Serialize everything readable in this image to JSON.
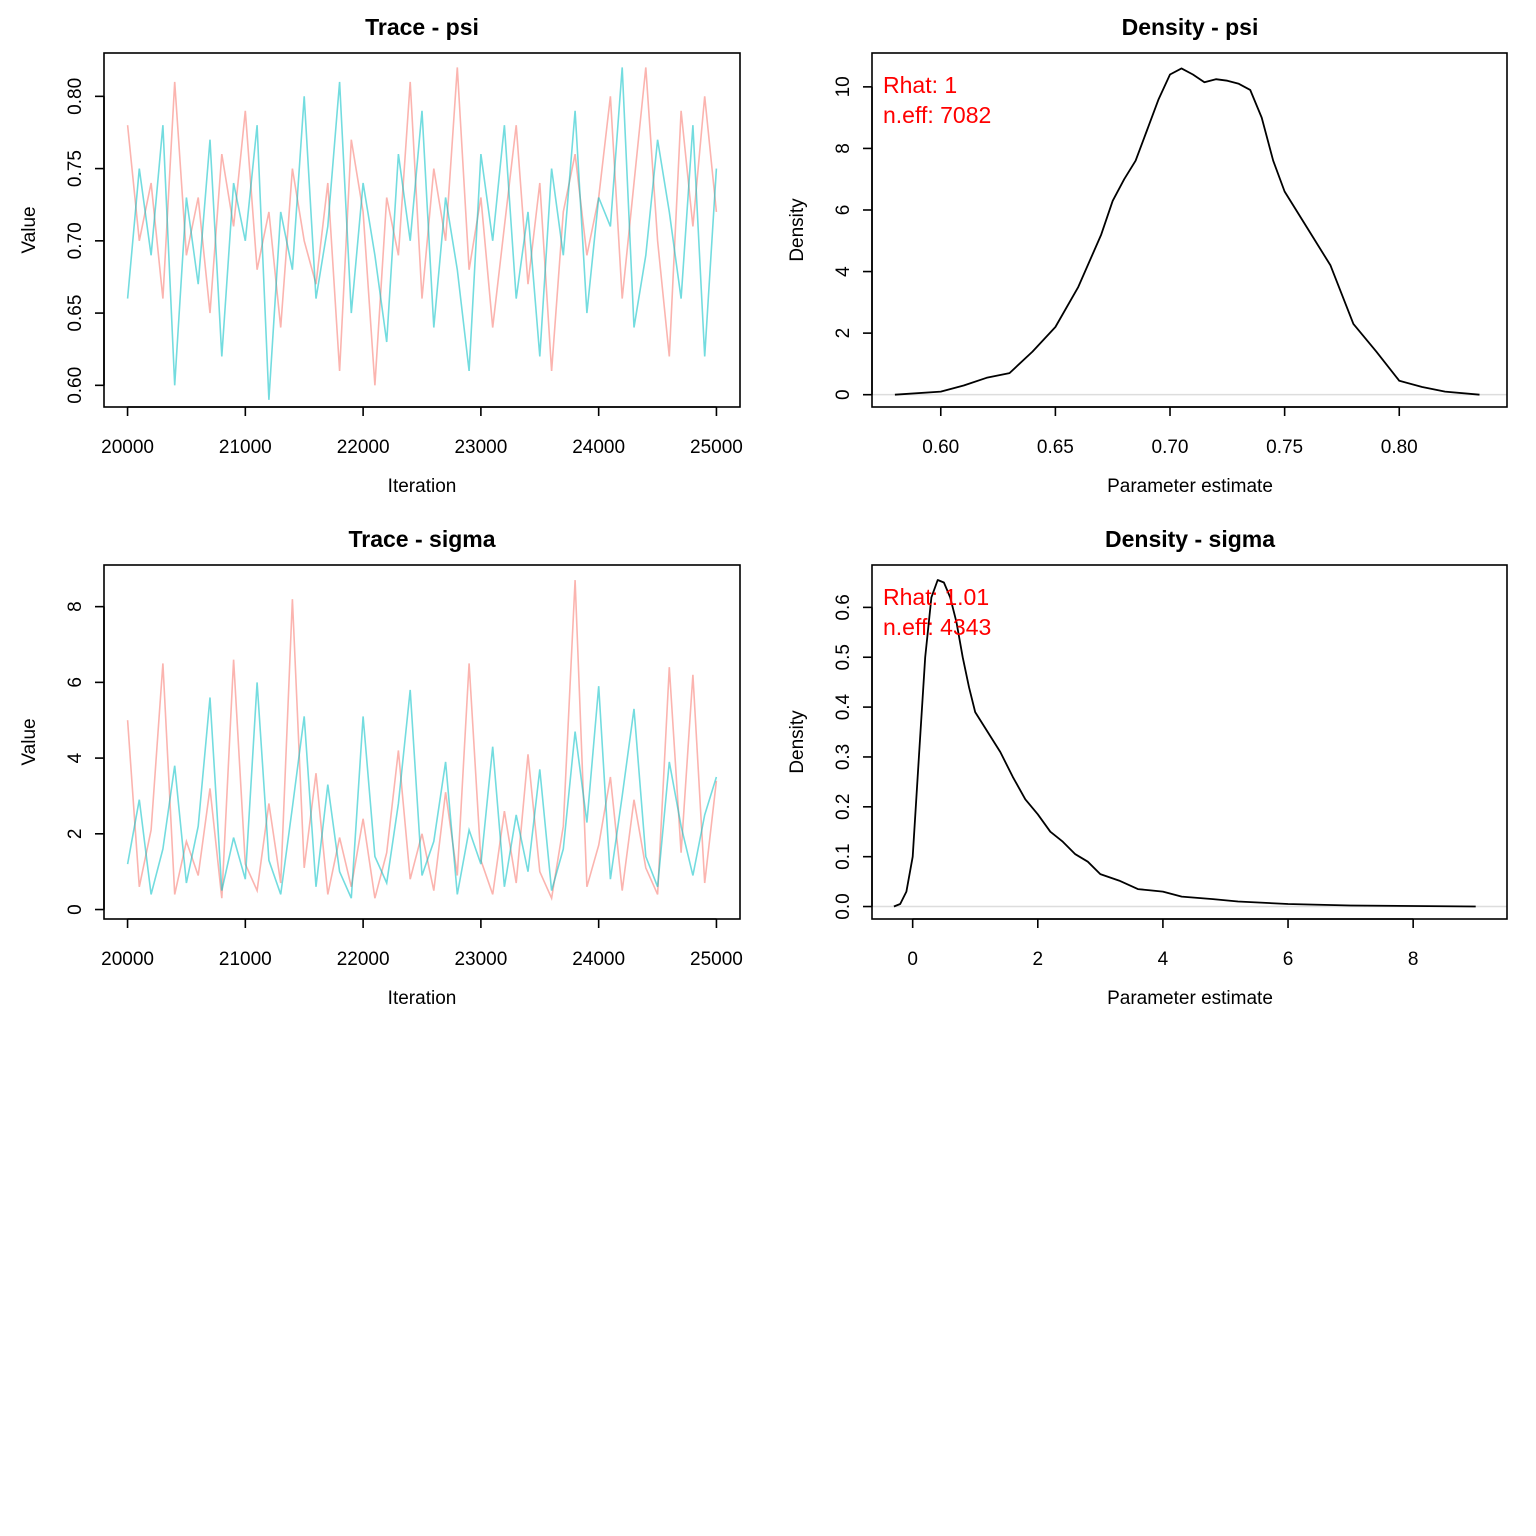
{
  "chart_data": [
    {
      "type": "line",
      "title": "Trace - psi",
      "xlabel": "Iteration",
      "ylabel": "Value",
      "xlim": [
        19800,
        25200
      ],
      "ylim": [
        0.585,
        0.83
      ],
      "xticks": [
        20000,
        21000,
        22000,
        23000,
        24000,
        25000
      ],
      "yticks": [
        "0.60",
        "0.65",
        "0.70",
        "0.75",
        "0.80"
      ],
      "grid": false,
      "x_start": 20000,
      "x_step": 100,
      "series": [
        {
          "color": "#F8766D",
          "values": [
            0.78,
            0.7,
            0.74,
            0.66,
            0.81,
            0.69,
            0.73,
            0.65,
            0.76,
            0.71,
            0.79,
            0.68,
            0.72,
            0.64,
            0.75,
            0.7,
            0.67,
            0.74,
            0.61,
            0.77,
            0.72,
            0.6,
            0.73,
            0.69,
            0.81,
            0.66,
            0.75,
            0.7,
            0.82,
            0.68,
            0.73,
            0.64,
            0.71,
            0.78,
            0.67,
            0.74,
            0.61,
            0.72,
            0.76,
            0.69,
            0.73,
            0.8,
            0.66,
            0.74,
            0.82,
            0.7,
            0.62,
            0.79,
            0.71,
            0.8,
            0.72
          ]
        },
        {
          "color": "#00BFC4",
          "values": [
            0.66,
            0.75,
            0.69,
            0.78,
            0.6,
            0.73,
            0.67,
            0.77,
            0.62,
            0.74,
            0.7,
            0.78,
            0.59,
            0.72,
            0.68,
            0.8,
            0.66,
            0.71,
            0.81,
            0.65,
            0.74,
            0.69,
            0.63,
            0.76,
            0.7,
            0.79,
            0.64,
            0.73,
            0.68,
            0.61,
            0.76,
            0.7,
            0.78,
            0.66,
            0.72,
            0.62,
            0.75,
            0.69,
            0.79,
            0.65,
            0.73,
            0.71,
            0.82,
            0.64,
            0.69,
            0.77,
            0.72,
            0.66,
            0.78,
            0.62,
            0.75
          ]
        }
      ]
    },
    {
      "type": "line",
      "title": "Density - psi",
      "xlabel": "Parameter estimate",
      "ylabel": "Density",
      "xlim": [
        0.57,
        0.847
      ],
      "ylim": [
        -0.4,
        11.1
      ],
      "xticks": [
        "0.60",
        "0.65",
        "0.70",
        "0.75",
        "0.80"
      ],
      "yticks": [
        0,
        2,
        4,
        6,
        8,
        10
      ],
      "grid": false,
      "annotations": [
        "Rhat: 1",
        "n.eff: 7082"
      ],
      "annotation_color": "#FF0000",
      "x": [
        0.58,
        0.6,
        0.61,
        0.62,
        0.63,
        0.64,
        0.65,
        0.66,
        0.67,
        0.675,
        0.68,
        0.685,
        0.69,
        0.695,
        0.7,
        0.705,
        0.71,
        0.715,
        0.72,
        0.725,
        0.73,
        0.735,
        0.74,
        0.745,
        0.75,
        0.76,
        0.77,
        0.78,
        0.79,
        0.8,
        0.81,
        0.82,
        0.835
      ],
      "y": [
        0,
        0.1,
        0.3,
        0.55,
        0.7,
        1.4,
        2.2,
        3.5,
        5.2,
        6.3,
        7.0,
        7.6,
        8.6,
        9.6,
        10.4,
        10.6,
        10.4,
        10.15,
        10.25,
        10.2,
        10.1,
        9.9,
        9.0,
        7.6,
        6.6,
        5.4,
        4.2,
        2.3,
        1.4,
        0.45,
        0.25,
        0.1,
        0
      ]
    },
    {
      "type": "line",
      "title": "Trace - sigma",
      "xlabel": "Iteration",
      "ylabel": "Value",
      "xlim": [
        19800,
        25200
      ],
      "ylim": [
        -0.25,
        9.1
      ],
      "xticks": [
        20000,
        21000,
        22000,
        23000,
        24000,
        25000
      ],
      "yticks": [
        0,
        2,
        4,
        6,
        8
      ],
      "grid": false,
      "x_start": 20000,
      "x_step": 100,
      "series": [
        {
          "color": "#F8766D",
          "values": [
            5.0,
            0.6,
            2.1,
            6.5,
            0.4,
            1.8,
            0.9,
            3.2,
            0.3,
            6.6,
            1.2,
            0.5,
            2.8,
            0.7,
            8.2,
            1.1,
            3.6,
            0.4,
            1.9,
            0.6,
            2.4,
            0.3,
            1.5,
            4.2,
            0.8,
            2.0,
            0.5,
            3.1,
            0.9,
            6.5,
            1.3,
            0.4,
            2.6,
            0.7,
            4.1,
            1.0,
            0.3,
            2.2,
            8.7,
            0.6,
            1.7,
            3.5,
            0.5,
            2.9,
            1.1,
            0.4,
            6.4,
            1.5,
            6.2,
            0.7,
            3.4
          ]
        },
        {
          "color": "#00BFC4",
          "values": [
            1.2,
            2.9,
            0.4,
            1.6,
            3.8,
            0.7,
            2.2,
            5.6,
            0.5,
            1.9,
            0.8,
            6.0,
            1.3,
            0.4,
            2.7,
            5.1,
            0.6,
            3.3,
            1.0,
            0.3,
            5.1,
            1.4,
            0.7,
            2.8,
            5.8,
            0.9,
            1.8,
            3.9,
            0.4,
            2.1,
            1.2,
            4.3,
            0.6,
            2.5,
            1.0,
            3.7,
            0.5,
            1.6,
            4.7,
            2.3,
            5.9,
            0.8,
            3.0,
            5.3,
            1.4,
            0.6,
            3.9,
            2.2,
            0.9,
            2.5,
            3.5
          ]
        }
      ]
    },
    {
      "type": "line",
      "title": "Density - sigma",
      "xlabel": "Parameter estimate",
      "ylabel": "Density",
      "xlim": [
        -0.65,
        9.5
      ],
      "ylim": [
        -0.025,
        0.685
      ],
      "xticks": [
        0,
        2,
        4,
        6,
        8
      ],
      "yticks": [
        "0.0",
        "0.1",
        "0.2",
        "0.3",
        "0.4",
        "0.5",
        "0.6"
      ],
      "grid": false,
      "annotations": [
        "Rhat: 1.01",
        "n.eff: 4343"
      ],
      "annotation_color": "#FF0000",
      "x": [
        -0.3,
        -0.2,
        -0.1,
        0,
        0.1,
        0.2,
        0.3,
        0.4,
        0.5,
        0.6,
        0.7,
        0.8,
        0.9,
        1.0,
        1.2,
        1.4,
        1.6,
        1.8,
        2.0,
        2.2,
        2.4,
        2.6,
        2.8,
        3.0,
        3.3,
        3.6,
        4.0,
        4.3,
        4.8,
        5.2,
        6.0,
        7.0,
        9.0
      ],
      "y": [
        0,
        0.005,
        0.03,
        0.1,
        0.3,
        0.5,
        0.62,
        0.655,
        0.65,
        0.62,
        0.57,
        0.5,
        0.44,
        0.39,
        0.35,
        0.31,
        0.26,
        0.215,
        0.185,
        0.15,
        0.13,
        0.105,
        0.09,
        0.065,
        0.052,
        0.035,
        0.03,
        0.02,
        0.015,
        0.01,
        0.005,
        0.002,
        0
      ]
    }
  ]
}
